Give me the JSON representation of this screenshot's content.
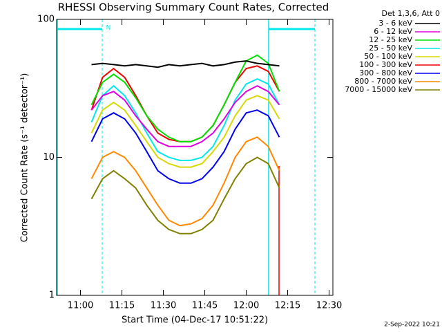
{
  "chart_data": {
    "type": "line",
    "title": "RHESSI Observing Summary Count Rates, Corrected",
    "xlabel": "Start Time (04-Dec-17 10:51:22)",
    "ylabel": "Corrected Count Rate (s⁻¹ detector⁻¹)",
    "legend_title": "Det 1,3,6, Att 0",
    "annotation": "N",
    "footer": "2-Sep-2022 10:21",
    "log_scale": true,
    "xlim": [
      "10:51:22",
      "12:31:22"
    ],
    "xticks": [
      "11:00",
      "11:15",
      "11:30",
      "11:45",
      "12:00",
      "12:15",
      "12:30"
    ],
    "ylim": [
      1,
      100
    ],
    "yticks": [
      1,
      10,
      100
    ],
    "x": [
      "11:04",
      "11:08",
      "11:12",
      "11:16",
      "11:20",
      "11:24",
      "11:28",
      "11:32",
      "11:36",
      "11:40",
      "11:44",
      "11:48",
      "11:52",
      "11:56",
      "12:00",
      "12:04",
      "12:08",
      "12:12"
    ],
    "series": [
      {
        "name": "3 - 6 keV",
        "color": "#000000",
        "values": [
          47,
          48,
          47,
          46,
          47,
          46,
          45,
          47,
          46,
          47,
          48,
          46,
          47,
          49,
          50,
          48,
          47,
          46
        ]
      },
      {
        "name": "6 - 12 keV",
        "color": "#e000e0",
        "values": [
          22,
          28,
          30,
          26,
          20,
          16,
          13,
          12,
          12,
          12,
          13,
          15,
          19,
          25,
          30,
          33,
          30,
          24
        ]
      },
      {
        "name": "12 - 25 keV",
        "color": "#00e000",
        "values": [
          24,
          35,
          40,
          35,
          27,
          20,
          16,
          14,
          13,
          13,
          14,
          17,
          24,
          35,
          50,
          55,
          48,
          30
        ]
      },
      {
        "name": "25 - 50 keV",
        "color": "#00e8e8",
        "values": [
          18,
          28,
          33,
          28,
          21,
          15,
          11,
          10,
          9.5,
          9.5,
          10,
          12,
          17,
          26,
          34,
          37,
          34,
          24
        ]
      },
      {
        "name": "50 - 100 keV",
        "color": "#d8d800",
        "values": [
          15,
          22,
          25,
          22,
          17,
          13,
          10,
          9,
          8.5,
          8.5,
          9,
          11,
          14,
          20,
          26,
          28,
          26,
          19
        ]
      },
      {
        "name": "100 - 300 keV",
        "color": "#f00000",
        "values": [
          22,
          38,
          44,
          38,
          28,
          20,
          15,
          13.5,
          13,
          13,
          14,
          17,
          24,
          35,
          44,
          46,
          42,
          30
        ]
      },
      {
        "name": "300 - 800 keV",
        "color": "#0000f0",
        "values": [
          13,
          19,
          21,
          19,
          15,
          11,
          8,
          7,
          6.5,
          6.5,
          7,
          8.5,
          11,
          16,
          21,
          22,
          20,
          14
        ]
      },
      {
        "name": "800 - 7000 keV",
        "color": "#ff8800",
        "values": [
          7,
          10,
          11,
          10,
          8,
          6,
          4.5,
          3.5,
          3.2,
          3.3,
          3.6,
          4.5,
          6.5,
          10,
          13,
          14,
          12,
          8
        ]
      },
      {
        "name": "7000 - 15000 keV",
        "color": "#808000",
        "values": [
          5,
          7,
          8,
          7,
          6,
          4.5,
          3.5,
          3,
          2.8,
          2.8,
          3,
          3.5,
          5,
          7,
          9,
          10,
          9,
          6
        ]
      }
    ]
  }
}
